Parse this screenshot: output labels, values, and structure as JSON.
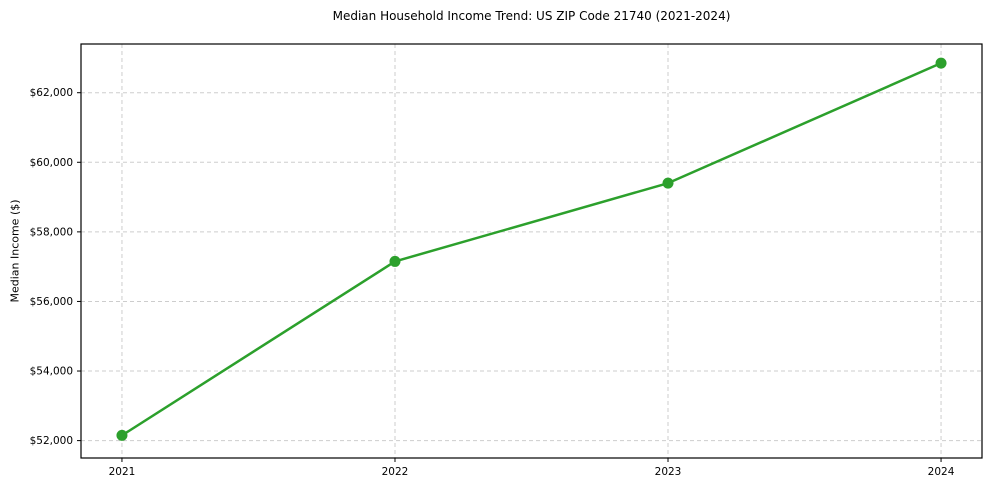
{
  "chart_data": {
    "type": "line",
    "title": "Median Household Income Trend: US ZIP Code 21740 (2021-2024)",
    "xlabel": "",
    "ylabel": "Median Income ($)",
    "x": [
      2021,
      2022,
      2023,
      2024
    ],
    "x_tick_labels": [
      "2021",
      "2022",
      "2023",
      "2024"
    ],
    "series": [
      {
        "values": [
          52150,
          57150,
          59400,
          62850
        ],
        "color": "#2ca02c",
        "marker": "circle"
      }
    ],
    "yticks": [
      52000,
      54000,
      56000,
      58000,
      60000,
      62000
    ],
    "ytick_labels": [
      "$52,000",
      "$54,000",
      "$56,000",
      "$58,000",
      "$60,000",
      "$62,000"
    ],
    "xlim": [
      2020.85,
      2024.15
    ],
    "ylim": [
      51500,
      63400
    ],
    "grid": true,
    "grid_style": "dashed",
    "legend_position": "none",
    "colors": {
      "line": "#2ca02c",
      "grid": "#cdcdcd",
      "axis": "#000000",
      "tick_text": "#000000",
      "background": "#ffffff"
    }
  }
}
